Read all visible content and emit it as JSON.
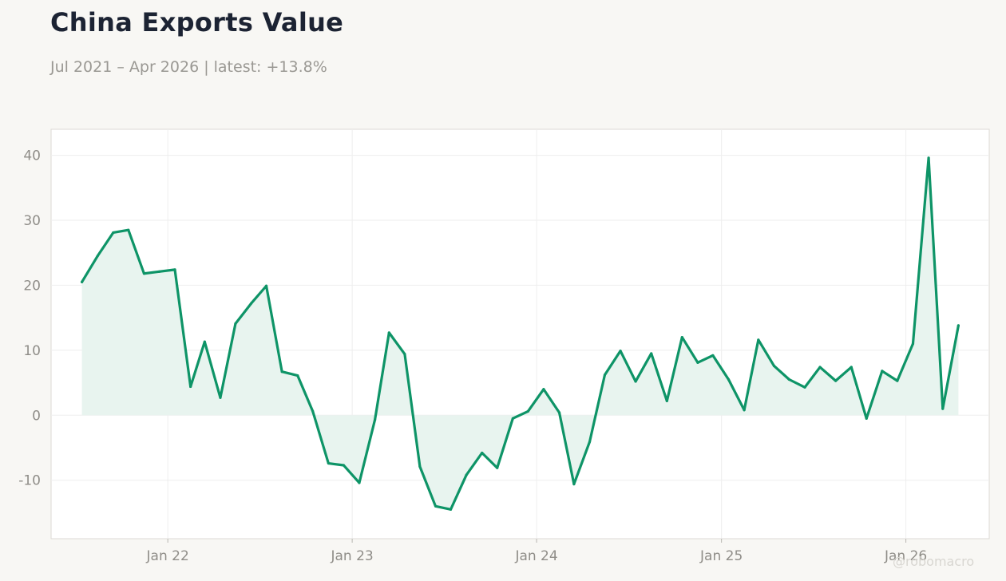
{
  "title": "China Exports Value",
  "subtitle": "Jul 2021 – Apr 2026 | latest: +13.8%",
  "watermark": "@robomacro",
  "colors": {
    "background": "#f8f7f4",
    "plot_background": "#ffffff",
    "line": "#0e9467",
    "fill": "#e8f4ef",
    "grid": "#eeeeee"
  },
  "chart_data": {
    "type": "area",
    "title": "China Exports Value",
    "subtitle": "Jul 2021 – Apr 2026 | latest: +13.8%",
    "xlabel": "",
    "ylabel": "",
    "xlim": [
      "2021-05-15",
      "2026-06-15"
    ],
    "ylim": [
      -19,
      44
    ],
    "grid": true,
    "legend": "none",
    "x_ticks": [
      {
        "date": "2022-01-01",
        "label": "Jan 22"
      },
      {
        "date": "2023-01-01",
        "label": "Jan 23"
      },
      {
        "date": "2024-01-01",
        "label": "Jan 24"
      },
      {
        "date": "2025-01-01",
        "label": "Jan 25"
      },
      {
        "date": "2026-01-01",
        "label": "Jan 26"
      }
    ],
    "y_ticks": [
      {
        "value": 40,
        "label": "40"
      },
      {
        "value": 30,
        "label": "30"
      },
      {
        "value": 20,
        "label": "20"
      },
      {
        "value": 10,
        "label": "10"
      },
      {
        "value": 0,
        "label": "0"
      },
      {
        "value": -10,
        "label": "-10"
      }
    ],
    "x": [
      "2021-07",
      "2021-08",
      "2021-09",
      "2021-10",
      "2021-11",
      "2021-12",
      "2022-01",
      "2022-02",
      "2022-03",
      "2022-04",
      "2022-05",
      "2022-06",
      "2022-07",
      "2022-08",
      "2022-09",
      "2022-10",
      "2022-11",
      "2022-12",
      "2023-01",
      "2023-02",
      "2023-03",
      "2023-04",
      "2023-05",
      "2023-06",
      "2023-07",
      "2023-08",
      "2023-09",
      "2023-10",
      "2023-11",
      "2023-12",
      "2024-01",
      "2024-02",
      "2024-03",
      "2024-04",
      "2024-05",
      "2024-06",
      "2024-07",
      "2024-08",
      "2024-09",
      "2024-10",
      "2024-11",
      "2024-12",
      "2025-01",
      "2025-02",
      "2025-03",
      "2025-04",
      "2025-05",
      "2025-06",
      "2025-07",
      "2025-08",
      "2025-09",
      "2025-10",
      "2025-11",
      "2025-12",
      "2026-01",
      "2026-02",
      "2026-03",
      "2026-04"
    ],
    "series": [
      {
        "values": [
          20.5,
          24.5,
          28.1,
          28.5,
          21.8,
          22.1,
          22.4,
          4.4,
          11.3,
          2.7,
          14.1,
          17.2,
          19.9,
          6.7,
          6.1,
          0.6,
          -7.4,
          -7.7,
          -10.4,
          -0.7,
          12.7,
          9.4,
          -7.9,
          -14.0,
          -14.5,
          -9.2,
          -5.8,
          -8.1,
          -0.5,
          0.6,
          4.0,
          0.4,
          -10.6,
          -4.1,
          6.2,
          9.9,
          5.2,
          9.5,
          2.2,
          12.0,
          8.1,
          9.2,
          5.5,
          0.8,
          11.6,
          7.6,
          5.5,
          4.3,
          7.4,
          5.3,
          7.4,
          -0.5,
          6.8,
          5.3,
          11.0,
          39.6,
          1.0,
          13.8
        ]
      }
    ]
  }
}
